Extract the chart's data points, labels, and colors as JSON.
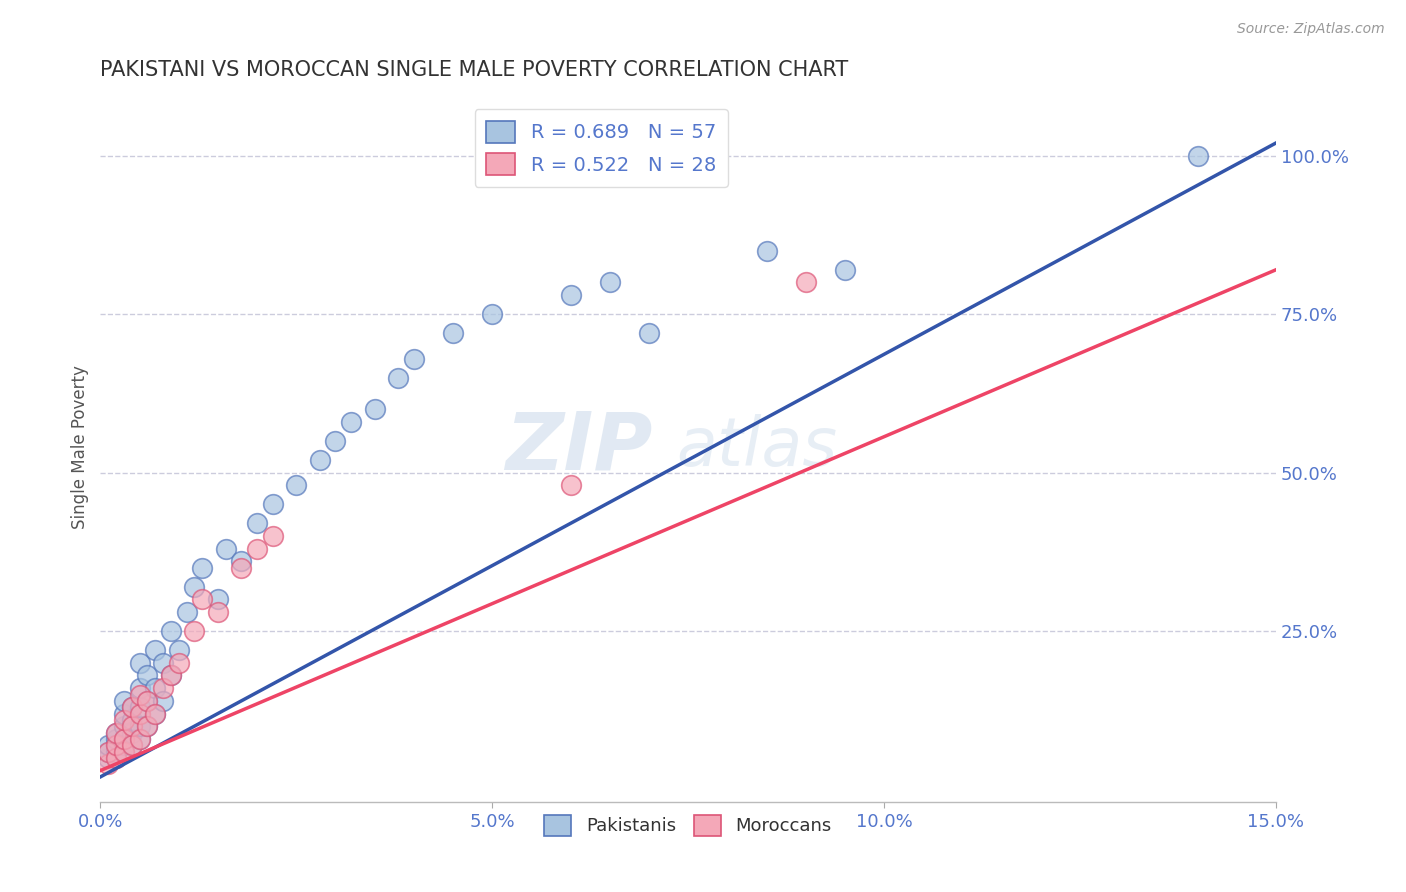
{
  "title": "PAKISTANI VS MOROCCAN SINGLE MALE POVERTY CORRELATION CHART",
  "source": "Source: ZipAtlas.com",
  "ylabel": "Single Male Poverty",
  "xlim": [
    0.0,
    0.15
  ],
  "ylim": [
    -0.02,
    1.1
  ],
  "xticks": [
    0.0,
    0.05,
    0.1,
    0.15
  ],
  "xtick_labels": [
    "0.0%",
    "5.0%",
    "10.0%",
    "15.0%"
  ],
  "yticks_right": [
    0.25,
    0.5,
    0.75,
    1.0
  ],
  "ytick_labels_right": [
    "25.0%",
    "50.0%",
    "75.0%",
    "100.0%"
  ],
  "blue_color": "#A8C4E0",
  "pink_color": "#F4A8B8",
  "blue_edge_color": "#5577BB",
  "pink_edge_color": "#DD5577",
  "blue_line_color": "#3355AA",
  "pink_line_color": "#EE4466",
  "grid_color": "#CCCCDD",
  "title_color": "#333333",
  "axis_label_color": "#555555",
  "tick_label_color": "#5577CC",
  "watermark_color": "#C5D5E8",
  "legend_r_blue": "R = 0.689",
  "legend_n_blue": "N = 57",
  "legend_r_pink": "R = 0.522",
  "legend_n_pink": "N = 28",
  "blue_scatter_x": [
    0.001,
    0.001,
    0.001,
    0.002,
    0.002,
    0.002,
    0.002,
    0.002,
    0.003,
    0.003,
    0.003,
    0.003,
    0.003,
    0.003,
    0.004,
    0.004,
    0.004,
    0.004,
    0.005,
    0.005,
    0.005,
    0.005,
    0.005,
    0.006,
    0.006,
    0.006,
    0.007,
    0.007,
    0.007,
    0.008,
    0.008,
    0.009,
    0.009,
    0.01,
    0.011,
    0.012,
    0.013,
    0.015,
    0.016,
    0.018,
    0.02,
    0.022,
    0.025,
    0.028,
    0.03,
    0.032,
    0.035,
    0.038,
    0.04,
    0.045,
    0.05,
    0.06,
    0.065,
    0.07,
    0.085,
    0.095,
    0.14
  ],
  "blue_scatter_y": [
    0.05,
    0.06,
    0.07,
    0.05,
    0.06,
    0.07,
    0.08,
    0.09,
    0.06,
    0.07,
    0.08,
    0.1,
    0.12,
    0.14,
    0.07,
    0.09,
    0.11,
    0.13,
    0.08,
    0.1,
    0.13,
    0.16,
    0.2,
    0.1,
    0.14,
    0.18,
    0.12,
    0.16,
    0.22,
    0.14,
    0.2,
    0.18,
    0.25,
    0.22,
    0.28,
    0.32,
    0.35,
    0.3,
    0.38,
    0.36,
    0.42,
    0.45,
    0.48,
    0.52,
    0.55,
    0.58,
    0.6,
    0.65,
    0.68,
    0.72,
    0.75,
    0.78,
    0.8,
    0.72,
    0.85,
    0.82,
    1.0
  ],
  "pink_scatter_x": [
    0.001,
    0.001,
    0.002,
    0.002,
    0.002,
    0.003,
    0.003,
    0.003,
    0.004,
    0.004,
    0.004,
    0.005,
    0.005,
    0.005,
    0.006,
    0.006,
    0.007,
    0.008,
    0.009,
    0.01,
    0.012,
    0.013,
    0.015,
    0.018,
    0.02,
    0.022,
    0.06,
    0.09
  ],
  "pink_scatter_y": [
    0.04,
    0.06,
    0.05,
    0.07,
    0.09,
    0.06,
    0.08,
    0.11,
    0.07,
    0.1,
    0.13,
    0.08,
    0.12,
    0.15,
    0.1,
    0.14,
    0.12,
    0.16,
    0.18,
    0.2,
    0.25,
    0.3,
    0.28,
    0.35,
    0.38,
    0.4,
    0.48,
    0.8
  ],
  "blue_line_x": [
    0.0,
    0.15
  ],
  "blue_line_y": [
    0.02,
    1.02
  ],
  "pink_line_x": [
    0.0,
    0.15
  ],
  "pink_line_y": [
    0.03,
    0.82
  ]
}
